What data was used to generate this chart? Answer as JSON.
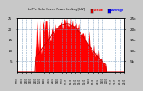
{
  "title": "SolP'd. Solar Power: Power Sen/Avg [kW]",
  "bg_color": "#c8c8c8",
  "plot_bg_color": "#ffffff",
  "grid_color": "#7799bb",
  "actual_color": "#ff0000",
  "avg_line_color": "#cc0000",
  "ylim": [
    0,
    25
  ],
  "yticks_left": [
    5,
    10,
    15,
    20,
    25
  ],
  "yticks_right": [
    5,
    10,
    15,
    20,
    25
  ],
  "ylabel_left": [
    "5",
    "10",
    "15",
    "20",
    "25"
  ],
  "ylabel_right": [
    "5k",
    "10k",
    "15k",
    "20k",
    "25k"
  ],
  "num_points": 144,
  "peak_value": 22.5,
  "legend_actual_color": "#ff0000",
  "legend_average_color": "#0000ff",
  "legend_actual_text": "Actual",
  "legend_average_text": "Average"
}
